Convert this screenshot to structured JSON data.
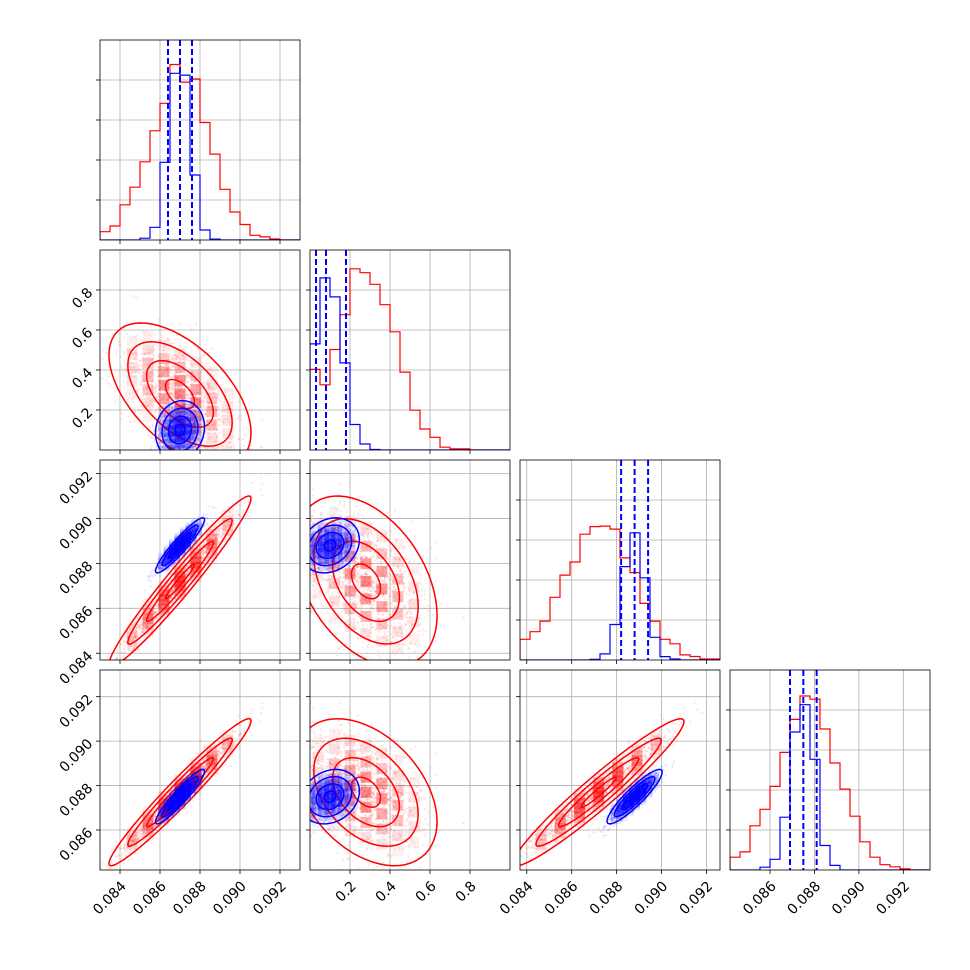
{
  "chart_data": {
    "type": "corner",
    "grid": true,
    "series": [
      {
        "color": "#ff0000",
        "mean": [
          0.087,
          0.28,
          0.0872,
          0.0877
        ],
        "std": [
          0.00145,
          0.145,
          0.00155,
          0.00135
        ],
        "corr": [
          [
            1,
            -0.55,
            0.97,
            0.97
          ],
          [
            -0.55,
            1,
            -0.4,
            -0.4
          ],
          [
            0.97,
            -0.4,
            1,
            0.96
          ],
          [
            0.97,
            -0.4,
            0.96,
            1
          ]
        ]
      },
      {
        "color": "#0000ff",
        "mean": [
          0.087,
          0.1,
          0.0888,
          0.0875
        ],
        "std": [
          0.0005,
          0.06,
          0.0005,
          0.0005
        ],
        "corr": [
          [
            1,
            0.1,
            0.93,
            0.93
          ],
          [
            0.1,
            1,
            0.2,
            0.2
          ],
          [
            0.93,
            0.2,
            1,
            0.9
          ],
          [
            0.93,
            0.2,
            0.9,
            1
          ]
        ],
        "quantiles": [
          [
            0.0864,
            0.087,
            0.0876
          ],
          [
            0.03,
            0.08,
            0.18
          ],
          [
            0.0882,
            0.0888,
            0.0894
          ],
          [
            0.0869,
            0.0875,
            0.0881
          ]
        ]
      }
    ],
    "axes": [
      {
        "range": [
          0.083,
          0.093
        ],
        "ticks": [
          "0.084",
          "0.086",
          "0.088",
          "0.090",
          "0.092"
        ],
        "tick_values": [
          0.084,
          0.086,
          0.088,
          0.09,
          0.092
        ]
      },
      {
        "range": [
          0.0,
          1.0
        ],
        "ticks": [
          "0.2",
          "0.4",
          "0.6",
          "0.8"
        ],
        "tick_values": [
          0.2,
          0.4,
          0.6,
          0.8
        ]
      },
      {
        "range": [
          0.0837,
          0.0926
        ],
        "ticks": [
          "0.084",
          "0.086",
          "0.088",
          "0.090",
          "0.092"
        ],
        "tick_values": [
          0.084,
          0.086,
          0.088,
          0.09,
          0.092
        ]
      },
      {
        "range": [
          0.0842,
          0.0932
        ],
        "ticks": [
          "0.086",
          "0.088",
          "0.090",
          "0.092"
        ],
        "tick_values": [
          0.086,
          0.088,
          0.09,
          0.092
        ]
      }
    ]
  }
}
